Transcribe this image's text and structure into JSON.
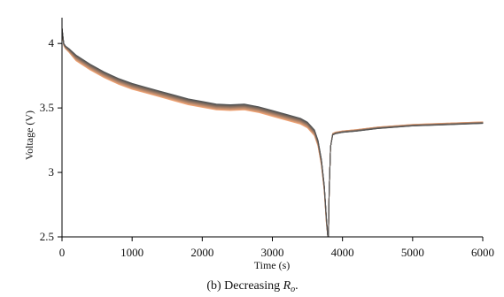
{
  "chart_data": {
    "type": "line",
    "title": "",
    "caption": {
      "prefix": "(b) Decreasing ",
      "symbol": "R",
      "subscript": "o",
      "suffix": "."
    },
    "xlabel": "Time (s)",
    "ylabel": "Voltage (V)",
    "xlim": [
      0,
      6000
    ],
    "ylim": [
      2.5,
      4.2
    ],
    "xticks": [
      0,
      1000,
      2000,
      3000,
      4000,
      5000,
      6000
    ],
    "xtick_labels": [
      "0",
      "1000",
      "2000",
      "3000",
      "4000",
      "5000",
      "6000"
    ],
    "yticks": [
      2.5,
      3,
      3.5,
      4
    ],
    "ytick_labels": [
      "2.5",
      "3",
      "3.5",
      "4"
    ],
    "grid": false,
    "legend": "none",
    "colors": {
      "start": "#f6a878",
      "end": "#555555"
    },
    "series_count": 18,
    "base_curve": {
      "x": [
        0,
        25,
        50,
        100,
        200,
        400,
        600,
        800,
        1000,
        1200,
        1400,
        1600,
        1800,
        2000,
        2200,
        2400,
        2600,
        2800,
        3000,
        3200,
        3400,
        3500,
        3600,
        3650,
        3700,
        3740,
        3770,
        3790,
        3800,
        3810,
        3830,
        3860,
        3900,
        4000,
        4200,
        4500,
        5000,
        5500,
        6000
      ],
      "y": [
        4.12,
        4.0,
        3.98,
        3.96,
        3.91,
        3.84,
        3.78,
        3.73,
        3.69,
        3.66,
        3.63,
        3.6,
        3.57,
        3.55,
        3.53,
        3.525,
        3.53,
        3.51,
        3.48,
        3.45,
        3.42,
        3.39,
        3.33,
        3.25,
        3.1,
        2.9,
        2.65,
        2.51,
        2.5,
        2.85,
        3.2,
        3.29,
        3.3,
        3.31,
        3.32,
        3.34,
        3.36,
        3.37,
        3.38
      ]
    },
    "series_offsets": {
      "discharge_min": -0.045,
      "discharge_max": 0.0,
      "recovery_min": 0.012,
      "recovery_max": 0.0
    }
  }
}
